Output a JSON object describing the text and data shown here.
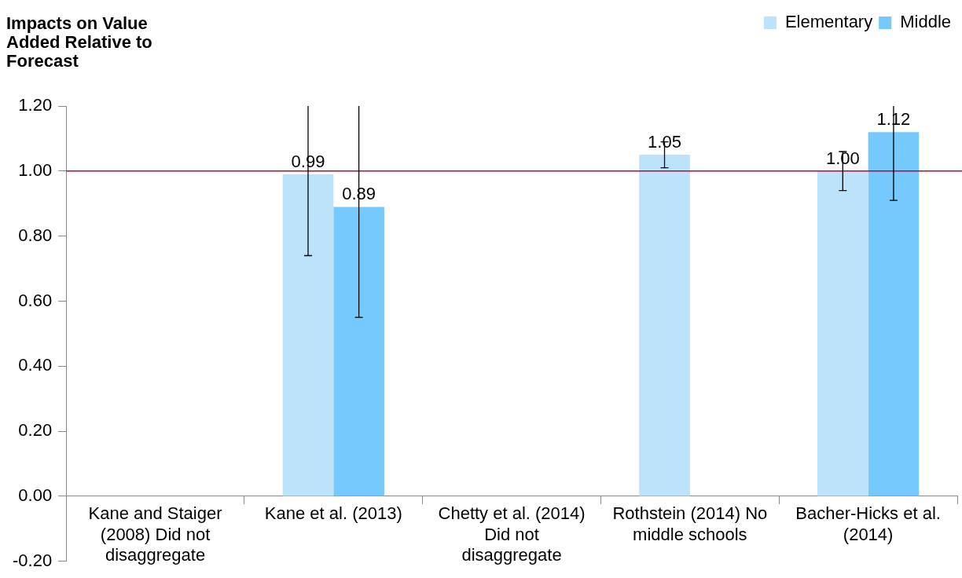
{
  "chart_data": {
    "type": "bar",
    "title": "Impacts on Value Added Relative to Forecast",
    "categories": [
      "Kane and Staiger (2008) Did not disaggregate",
      "Kane et al. (2013)",
      "Chetty et al. (2014) Did not disaggregate",
      "Rothstein (2014) No middle schools",
      "Bacher-Hicks et al. (2014)"
    ],
    "series": [
      {
        "name": "Elementary",
        "color": "#bde3fb",
        "values": [
          null,
          0.99,
          null,
          1.05,
          1.0
        ],
        "errors": [
          null,
          [
            0.74,
            1.2
          ],
          null,
          [
            1.01,
            1.09
          ],
          [
            0.94,
            1.06
          ]
        ],
        "value_labels": [
          null,
          "0.99",
          null,
          "1.05",
          "1.00"
        ]
      },
      {
        "name": "Middle",
        "color": "#75c9fd",
        "values": [
          null,
          0.89,
          null,
          null,
          1.12
        ],
        "errors": [
          null,
          [
            0.55,
            1.2
          ],
          null,
          null,
          [
            0.91,
            1.2
          ]
        ],
        "value_labels": [
          null,
          "0.89",
          null,
          null,
          "1.12"
        ]
      }
    ],
    "ylim": [
      -0.2,
      1.2
    ],
    "yticks": [
      {
        "value": -0.2,
        "label": "-0.20"
      },
      {
        "value": 0,
        "label": "0.00"
      },
      {
        "value": 0.2,
        "label": "0.20"
      },
      {
        "value": 0.4,
        "label": "0.40"
      },
      {
        "value": 0.6,
        "label": "0.60"
      },
      {
        "value": 0.8,
        "label": "0.80"
      },
      {
        "value": 1,
        "label": "1.00"
      },
      {
        "value": 1.2,
        "label": "1.20"
      }
    ],
    "ref_lines": [
      {
        "axis": "y",
        "value": 1,
        "color": "#cc0033"
      }
    ],
    "grid": false,
    "legend": "top right"
  }
}
